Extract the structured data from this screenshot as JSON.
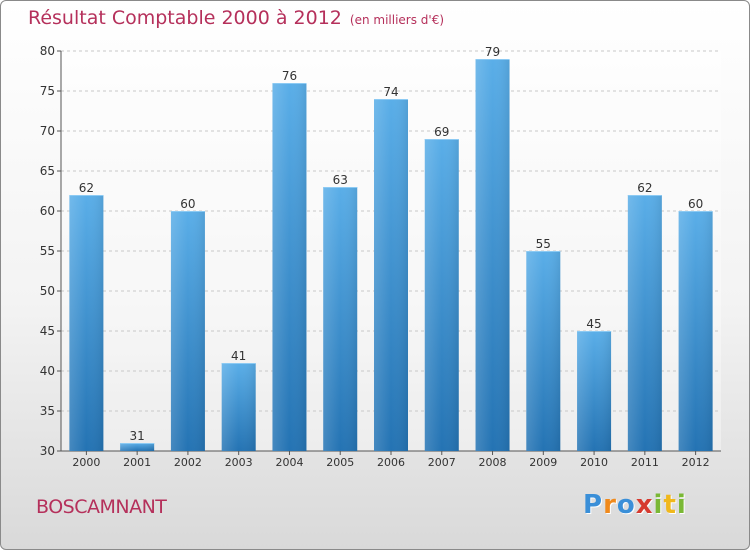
{
  "chart_data": {
    "type": "bar",
    "title": "Résultat Comptable 2000 à 2012",
    "subtitle": "(en milliers d'€)",
    "categories": [
      "2000",
      "2001",
      "2002",
      "2003",
      "2004",
      "2005",
      "2006",
      "2007",
      "2008",
      "2009",
      "2010",
      "2011",
      "2012"
    ],
    "values": [
      62,
      31,
      60,
      41,
      76,
      63,
      74,
      69,
      79,
      55,
      45,
      62,
      60
    ],
    "ylim": [
      30,
      80
    ],
    "yticks": [
      30,
      35,
      40,
      45,
      50,
      55,
      60,
      65,
      70,
      75,
      80
    ],
    "xlabel": "",
    "ylabel": "",
    "grid": true,
    "bar_color_top": "#5aaee8",
    "bar_color_bottom": "#2473b3"
  },
  "commune": "BOSCAMNANT",
  "logo": {
    "letters": [
      "P",
      "r",
      "o",
      "x",
      "i",
      "t",
      "i"
    ],
    "colors": [
      "#3a8fd8",
      "#f08a1c",
      "#3a8fd8",
      "#d63a2f",
      "#7ab835",
      "#f0b81c",
      "#7ab835"
    ]
  }
}
